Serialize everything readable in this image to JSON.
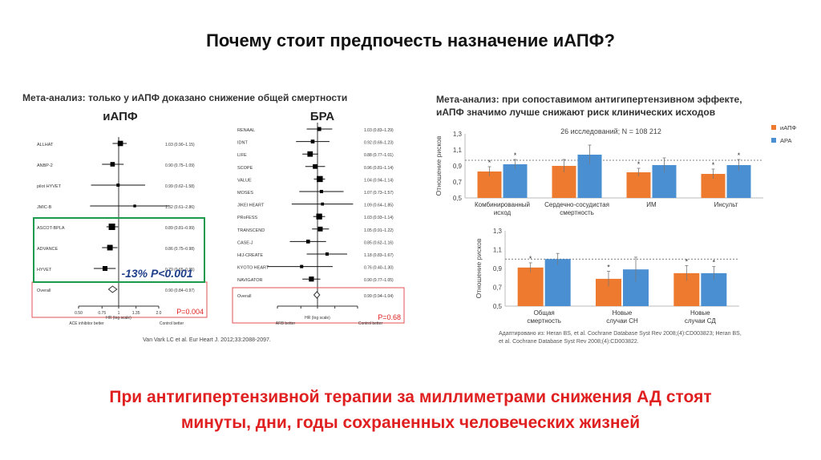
{
  "slide": {
    "title": "Почему стоит предпочесть назначение иАПФ?",
    "conclusion_line1": "При антигипертензивной терапии за миллиметрами снижения АД стоят",
    "conclusion_line2": "минуты, дни, годы сохраненных человеческих жизней"
  },
  "forest": {
    "title": "Мета-анализ: только у иАПФ доказано снижение общей смертности",
    "left": {
      "heading": "иАПФ",
      "studies": [
        {
          "name": "ALLHAT",
          "label": "1.03 (0.90–1.15)",
          "hr": 1.03,
          "lo": 0.9,
          "hi": 1.15
        },
        {
          "name": "ANBP-2",
          "label": "0.90 (0.75–1.09)",
          "hr": 0.9,
          "lo": 0.75,
          "hi": 1.09
        },
        {
          "name": "pilot HYVET",
          "label": "0.99 (0.62–1.58)",
          "hr": 0.99,
          "lo": 0.62,
          "hi": 1.58
        },
        {
          "name": "JMIC-B",
          "label": "1.32 (0.61–2.86)",
          "hr": 1.32,
          "lo": 0.61,
          "hi": 2.86
        },
        {
          "name": "ASCOT-BPLA",
          "label": "0.89 (0.81–0.99)",
          "hr": 0.89,
          "lo": 0.81,
          "hi": 0.99
        },
        {
          "name": "ADVANCE",
          "label": "0.86 (0.75–0.98)",
          "hr": 0.86,
          "lo": 0.75,
          "hi": 0.98
        },
        {
          "name": "HYVET",
          "label": "0.79 (0.65–0.95)",
          "hr": 0.79,
          "lo": 0.65,
          "hi": 0.95
        }
      ],
      "overall_name": "Overall",
      "overall_label": "0.90 (0.84–0.97)",
      "overall": {
        "hr": 0.9,
        "lo": 0.84,
        "hi": 0.97
      },
      "reduction": "-13% P<0.001",
      "p_value": "P=0.004",
      "axis_ticks": [
        "0.50",
        "0.75",
        "1",
        "1.35",
        "2.0"
      ],
      "axis_label": "HR (log scale)",
      "left_note": "ACE inhibitor better",
      "right_note": "Control better"
    },
    "right": {
      "heading": "БРА",
      "studies": [
        {
          "name": "RENAAL",
          "label": "1.03 (0.83–1.29)",
          "hr": 1.03,
          "lo": 0.83,
          "hi": 1.29
        },
        {
          "name": "IDNT",
          "label": "0.92 (0.69–1.23)",
          "hr": 0.92,
          "lo": 0.69,
          "hi": 1.23
        },
        {
          "name": "LIFE",
          "label": "0.88 (0.77–1.01)",
          "hr": 0.88,
          "lo": 0.77,
          "hi": 1.01
        },
        {
          "name": "SCOPE",
          "label": "0.96 (0.81–1.14)",
          "hr": 0.96,
          "lo": 0.81,
          "hi": 1.14
        },
        {
          "name": "VALUE",
          "label": "1.04 (0.94–1.14)",
          "hr": 1.04,
          "lo": 0.94,
          "hi": 1.14
        },
        {
          "name": "MOSES",
          "label": "1.07 (0.73–1.57)",
          "hr": 1.07,
          "lo": 0.73,
          "hi": 1.57
        },
        {
          "name": "JIKEI HEART",
          "label": "1.09 (0.64–1.85)",
          "hr": 1.09,
          "lo": 0.64,
          "hi": 1.85
        },
        {
          "name": "PRoFESS",
          "label": "1.03 (0.93–1.14)",
          "hr": 1.03,
          "lo": 0.93,
          "hi": 1.14
        },
        {
          "name": "TRANSCEND",
          "label": "1.05 (0.91–1.22)",
          "hr": 1.05,
          "lo": 0.91,
          "hi": 1.22
        },
        {
          "name": "CASE-J",
          "label": "0.85 (0.62–1.16)",
          "hr": 0.85,
          "lo": 0.62,
          "hi": 1.16
        },
        {
          "name": "HIJ-CREATE",
          "label": "1.18 (0.83–1.67)",
          "hr": 1.18,
          "lo": 0.83,
          "hi": 1.67
        },
        {
          "name": "KYOTO HEART",
          "label": "0.76 (0.40–1.30)",
          "hr": 0.76,
          "lo": 0.4,
          "hi": 1.3
        },
        {
          "name": "NAVIGATOR",
          "label": "0.90 (0.77–1.05)",
          "hr": 0.9,
          "lo": 0.77,
          "hi": 1.05
        }
      ],
      "overall_name": "Overall",
      "overall_label": "0.99 (0.94–1.04)",
      "overall": {
        "hr": 0.99,
        "lo": 0.94,
        "hi": 1.04
      },
      "p_value": "P=0.68",
      "axis_label": "HR (log scale)",
      "left_note": "ARB better",
      "right_note": "Control better"
    },
    "citation": "Van Vark LC et al. Eur Heart J. 2012;33:2088-2097."
  },
  "bar_charts": {
    "title_line1": "Мета-анализ: при сопоставимом антигипертензивном эффекте,",
    "title_line2": "иАПФ значимо лучше снижают риск клинических исходов",
    "subtitle": "26 исследований; N = 108 212",
    "ylabel": "Отношение рисков",
    "legend": [
      "иАПФ",
      "АРА"
    ],
    "colors": {
      "ace": "#ee7a30",
      "ara": "#4a8fd1"
    },
    "star": "*",
    "citation_line1": "Адаптировано из: Heran BS, et al. Cochrane Database Syst Rev 2008;(4):CD003823; Heran BS,",
    "citation_line2": "et al. Cochrane Database Syst Rev 2008;(4):CD003822."
  },
  "chart_data": [
    {
      "type": "scatter",
      "title": "иАПФ",
      "xlabel": "HR (log scale)",
      "x_scale": "log",
      "xlim": [
        0.5,
        2.0
      ],
      "categories": [
        "ALLHAT",
        "ANBP-2",
        "pilot HYVET",
        "JMIC-B",
        "ASCOT-BPLA",
        "ADVANCE",
        "HYVET",
        "Overall"
      ],
      "series": [
        {
          "name": "HR",
          "values": [
            1.03,
            0.9,
            0.99,
            1.32,
            0.89,
            0.86,
            0.79,
            0.9
          ]
        },
        {
          "name": "lower CI",
          "values": [
            0.9,
            0.75,
            0.62,
            0.61,
            0.81,
            0.75,
            0.65,
            0.84
          ]
        },
        {
          "name": "upper CI",
          "values": [
            1.15,
            1.09,
            1.58,
            2.86,
            0.99,
            0.98,
            0.95,
            0.97
          ]
        }
      ]
    },
    {
      "type": "scatter",
      "title": "БРА",
      "xlabel": "HR (log scale)",
      "x_scale": "log",
      "xlim": [
        0.5,
        2.0
      ],
      "categories": [
        "RENAAL",
        "IDNT",
        "LIFE",
        "SCOPE",
        "VALUE",
        "MOSES",
        "JIKEI HEART",
        "PRoFESS",
        "TRANSCEND",
        "CASE-J",
        "HIJ-CREATE",
        "KYOTO HEART",
        "NAVIGATOR",
        "Overall"
      ],
      "series": [
        {
          "name": "HR",
          "values": [
            1.03,
            0.92,
            0.88,
            0.96,
            1.04,
            1.07,
            1.09,
            1.03,
            1.05,
            0.85,
            1.18,
            0.76,
            0.9,
            0.99
          ]
        },
        {
          "name": "lower CI",
          "values": [
            0.83,
            0.69,
            0.77,
            0.81,
            0.94,
            0.73,
            0.64,
            0.93,
            0.91,
            0.62,
            0.83,
            0.4,
            0.77,
            0.94
          ]
        },
        {
          "name": "upper CI",
          "values": [
            1.29,
            1.23,
            1.01,
            1.14,
            1.14,
            1.57,
            1.85,
            1.14,
            1.22,
            1.16,
            1.67,
            1.3,
            1.05,
            1.04
          ]
        }
      ]
    },
    {
      "type": "bar",
      "ylabel": "Отношение рисков",
      "ylim": [
        0.5,
        1.3
      ],
      "yticks": [
        "0,5",
        "0,7",
        "0,9",
        "1,1",
        "1,3"
      ],
      "categories": [
        "Комбинированный исход",
        "Сердечно-сосудистая смертность",
        "ИМ",
        "Инсульт"
      ],
      "series": [
        {
          "name": "иАПФ",
          "values": [
            0.83,
            0.9,
            0.82,
            0.8
          ],
          "err": [
            0.06,
            0.08,
            0.05,
            0.06
          ],
          "star": [
            true,
            false,
            true,
            true
          ]
        },
        {
          "name": "АРА",
          "values": [
            0.92,
            1.04,
            0.91,
            0.91
          ],
          "err": [
            0.06,
            0.12,
            0.09,
            0.07
          ],
          "star": [
            true,
            false,
            false,
            true
          ]
        }
      ],
      "reference_line": 0.97
    },
    {
      "type": "bar",
      "ylabel": "Отношение рисков",
      "ylim": [
        0.5,
        1.3
      ],
      "yticks": [
        "0,5",
        "0,7",
        "0,9",
        "1,1",
        "1,3"
      ],
      "categories": [
        "Общая смертность",
        "Новые случаи СН",
        "Новые случаи СД"
      ],
      "series": [
        {
          "name": "иАПФ",
          "values": [
            0.91,
            0.79,
            0.85
          ],
          "err": [
            0.05,
            0.08,
            0.08
          ],
          "star": [
            true,
            true,
            true
          ]
        },
        {
          "name": "АРА",
          "values": [
            1.0,
            0.89,
            0.85
          ],
          "err": [
            0.06,
            0.13,
            0.07
          ],
          "star": [
            false,
            false,
            true
          ]
        }
      ],
      "reference_line": 1.0
    }
  ]
}
